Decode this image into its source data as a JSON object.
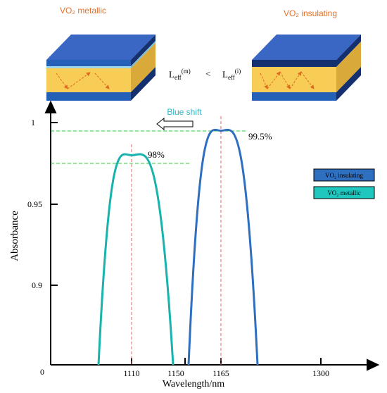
{
  "colors": {
    "metallic": "#17b3ac",
    "insulating": "#2f6fc0",
    "slab_blue": "#2460b8",
    "slab_top": "#3a66c4",
    "slab_yellow": "#f7cd55",
    "slab_yellow_side": "#d9a93a",
    "slab_dark": "#14306f",
    "guide": "#37c34a",
    "center": "#f06060",
    "header": "#e0712a",
    "blue_shift": "#2bb6c7",
    "legend_ins_bg": "#2f6fc0",
    "legend_met_bg": "#1fc7bf"
  },
  "header": {
    "left_label": "VO₂ metallic",
    "right_label": "VO₂ insulating",
    "leff_m_base": "L",
    "leff_m_sub": "eff",
    "leff_m_sup": "(m)",
    "less_than": "<",
    "leff_i_base": "L",
    "leff_i_sub": "eff",
    "leff_i_sup": "(i)"
  },
  "annotations": {
    "blue_shift": "Blue shift",
    "peak_met_label": "98%",
    "peak_ins_label": "99.5%"
  },
  "chart_data": {
    "type": "line",
    "xlabel": "Wavelength/nm",
    "ylabel": "Absorbance",
    "x_ticks": [
      "1110",
      "1150",
      "1165",
      "1300"
    ],
    "y_ticks": [
      "0",
      "0.9",
      "0.95",
      "1"
    ],
    "series": [
      {
        "name": "VO₂ insulating",
        "peak_x": 1165,
        "peak_y": 0.995,
        "x_start": 1152,
        "x_end": 1181
      },
      {
        "name": "VO₂ metallic",
        "peak_x": 1110,
        "peak_y": 0.98,
        "x_start": 1085,
        "x_end": 1136
      }
    ],
    "legend": [
      "VO₂ insulating",
      "VO₂ metallic"
    ],
    "legend_position": "right",
    "grid": false
  }
}
